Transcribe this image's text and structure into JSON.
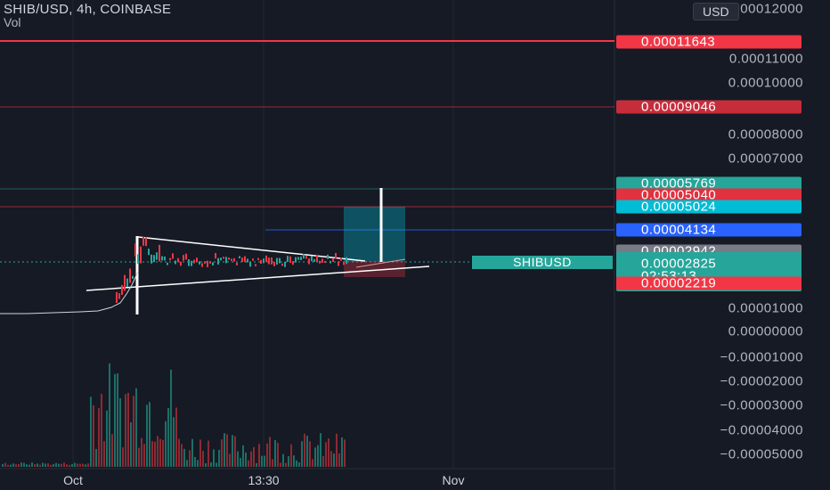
{
  "header": {
    "symbol_line": "SHIB/USD, 4h, COINBASE",
    "indicator": "Vol"
  },
  "currency_button": "USD",
  "symbol_badge": "SHIBUSD",
  "y_axis_labels": [
    "0.00012000",
    "0.00011000",
    "0.00010000",
    "0.00008000",
    "0.00007000",
    "0.00001000",
    "0.00000000",
    "−0.00001000",
    "−0.00002000",
    "−0.00003000",
    "−0.00004000",
    "−0.00005000"
  ],
  "price_tags": {
    "resistance_top": "0.00011643",
    "resistance_2": "0.00009046",
    "green_level": "0.00005769",
    "red_level": "0.00005040",
    "cyan_level": "0.00005024",
    "blue_level": "0.00004134",
    "gray_level": "0.00002942",
    "last_price": "0.00002825",
    "countdown": "02:53:13",
    "stop_level": "0.00002219"
  },
  "x_axis_labels": {
    "oct": "Oct",
    "time": "13:30",
    "nov": "Nov"
  },
  "colors": {
    "background": "#161a25",
    "red": "#f23645",
    "green": "#26a69a",
    "cyan": "#00bcd4",
    "blue": "#2962ff",
    "gray": "#787b86"
  },
  "chart_data": {
    "type": "candlestick",
    "y_tick_values": [
      0.00012,
      0.00011,
      0.0001,
      8e-05,
      7e-05,
      1e-05,
      0,
      -1e-05,
      -2e-05,
      -3e-05,
      -4e-05,
      -5e-05
    ],
    "horizontal_levels": [
      0.00011643,
      9.046e-05,
      5.769e-05,
      5.04e-05,
      5.024e-05,
      4.134e-05,
      2.942e-05,
      2.825e-05,
      2.219e-05
    ],
    "last_price": 2.825e-05
  }
}
